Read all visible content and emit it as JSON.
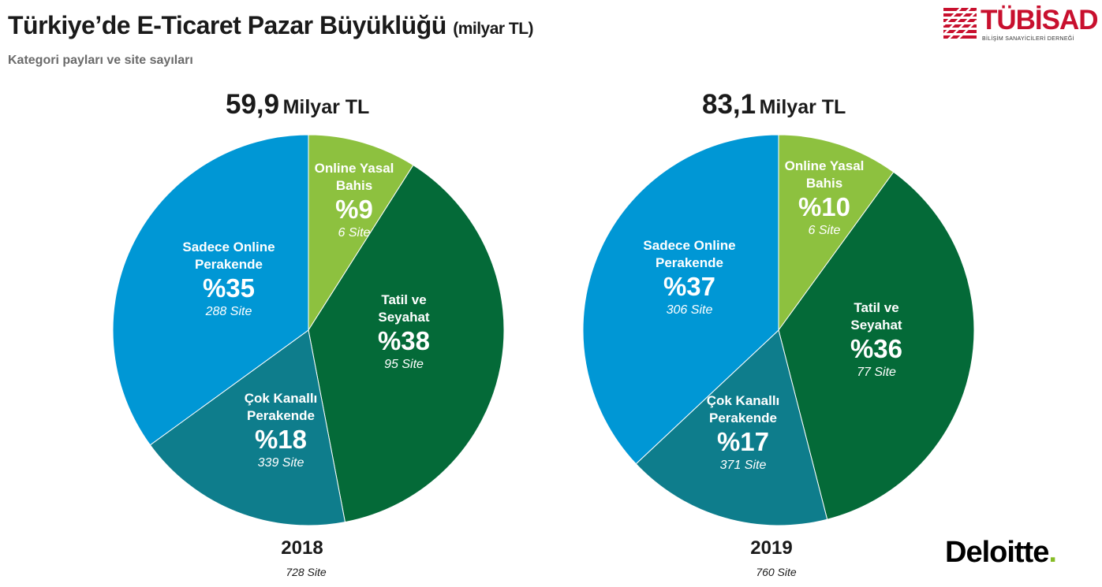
{
  "header": {
    "title": "Türkiye’de E-Ticaret Pazar Büyüklüğü",
    "title_unit": "(milyar TL)",
    "subtitle": "Kategori payları ve site sayıları"
  },
  "logos": {
    "tubisad": "TÜBİSAD",
    "tubisad_sub": "BİLİŞİM SANAYİCİLERİ DERNEĞİ",
    "deloitte": "Deloitte",
    "deloitte_dot": "."
  },
  "colors": {
    "online_yasal_bahis": "#8dc13f",
    "tatil_ve_seyahat": "#046a38",
    "cok_kanalli_perakende": "#0e7d8c",
    "sadece_online_perakende": "#0097d5"
  },
  "chart_data": [
    {
      "type": "pie",
      "total_value": "59,9",
      "total_unit": "Milyar TL",
      "year": "2018",
      "year_sites": "728 Site",
      "slices": [
        {
          "label_line1": "Online Yasal",
          "label_line2": "Bahis",
          "pct_label": "%9",
          "value": 9,
          "sites": "6 Site"
        },
        {
          "label_line1": "Tatil ve",
          "label_line2": "Seyahat",
          "pct_label": "%38",
          "value": 38,
          "sites": "95 Site"
        },
        {
          "label_line1": "Çok Kanallı",
          "label_line2": "Perakende",
          "pct_label": "%18",
          "value": 18,
          "sites": "339 Site"
        },
        {
          "label_line1": "Sadece Online",
          "label_line2": "Perakende",
          "pct_label": "%35",
          "value": 35,
          "sites": "288 Site"
        }
      ]
    },
    {
      "type": "pie",
      "total_value": "83,1",
      "total_unit": "Milyar TL",
      "year": "2019",
      "year_sites": "760 Site",
      "slices": [
        {
          "label_line1": "Online Yasal",
          "label_line2": "Bahis",
          "pct_label": "%10",
          "value": 10,
          "sites": "6 Site"
        },
        {
          "label_line1": "Tatil ve",
          "label_line2": "Seyahat",
          "pct_label": "%36",
          "value": 36,
          "sites": "77 Site"
        },
        {
          "label_line1": "Çok Kanallı",
          "label_line2": "Perakende",
          "pct_label": "%17",
          "value": 17,
          "sites": "371 Site"
        },
        {
          "label_line1": "Sadece Online",
          "label_line2": "Perakende",
          "pct_label": "%37",
          "value": 37,
          "sites": "306 Site"
        }
      ]
    }
  ]
}
